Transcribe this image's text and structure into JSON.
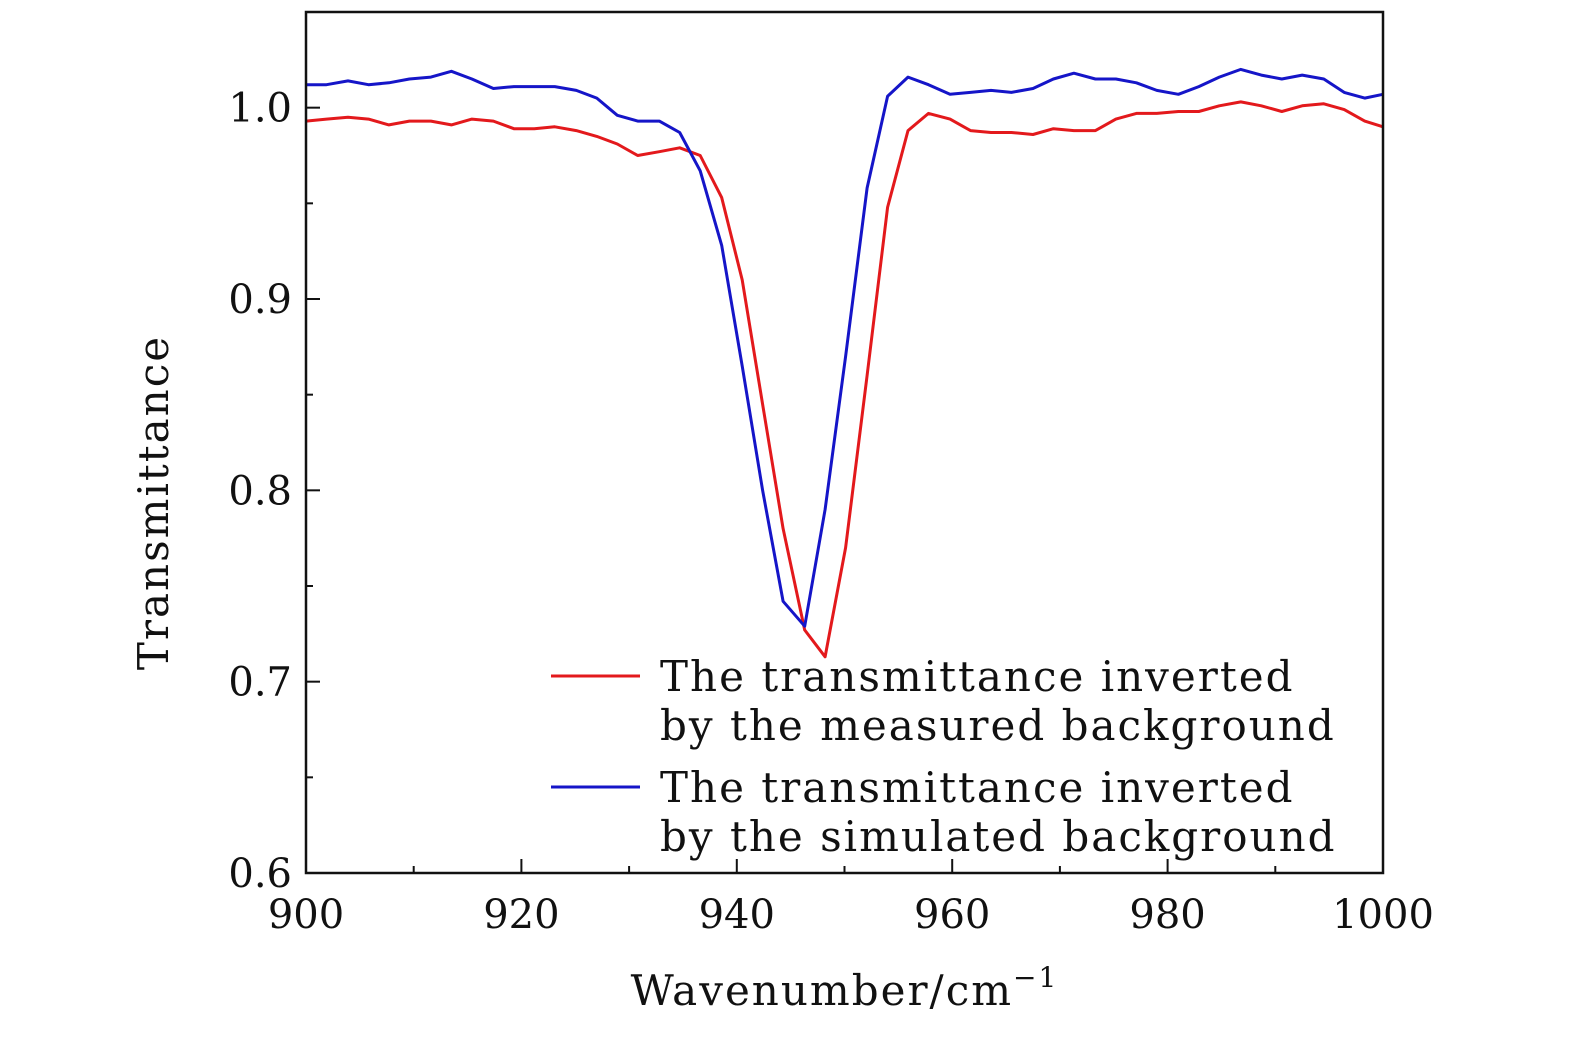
{
  "chart_data": {
    "type": "line",
    "xlabel": "Wavenumber/cm",
    "xlabel_superscript": "−1",
    "ylabel": "Transmittance",
    "xlim": [
      900,
      1000
    ],
    "ylim": [
      0.6,
      1.05
    ],
    "x_ticks": [
      900,
      920,
      940,
      960,
      980,
      1000
    ],
    "x_tick_labels": [
      "900",
      "920",
      "940",
      "960",
      "980",
      "1000"
    ],
    "y_ticks": [
      0.6,
      0.7,
      0.8,
      0.9,
      1.0
    ],
    "y_tick_labels": [
      "0.6",
      "0.7",
      "0.8",
      "0.9",
      "1.0"
    ],
    "y_minor_ticks": [
      0.65,
      0.75,
      0.85,
      0.95
    ],
    "x_minor_ticks": [
      910,
      930,
      950,
      970,
      990
    ],
    "grid": false,
    "legend_position": "bottom-right",
    "series": [
      {
        "name": "The transmittance inverted by the measured background",
        "legend_lines": [
          "The transmittance inverted",
          "by the measured background"
        ],
        "color": "#e3191c",
        "x": [
          900,
          901.9,
          903.9,
          905.8,
          907.7,
          909.6,
          911.6,
          913.5,
          915.4,
          917.4,
          919.3,
          921.2,
          923.1,
          925.1,
          927,
          928.9,
          930.8,
          932.8,
          934.7,
          936.6,
          938.6,
          940.5,
          942.4,
          944.3,
          946.3,
          948.2,
          950.1,
          952.1,
          954,
          955.9,
          957.8,
          959.8,
          961.7,
          963.6,
          965.5,
          967.5,
          969.4,
          971.3,
          973.3,
          975.2,
          977.1,
          979,
          981,
          982.9,
          984.8,
          986.8,
          988.7,
          990.6,
          992.5,
          994.5,
          996.4,
          998.3,
          1000
        ],
        "y": [
          0.993,
          0.994,
          0.995,
          0.994,
          0.991,
          0.993,
          0.993,
          0.991,
          0.994,
          0.993,
          0.989,
          0.989,
          0.99,
          0.988,
          0.985,
          0.981,
          0.975,
          0.977,
          0.979,
          0.975,
          0.953,
          0.91,
          0.845,
          0.78,
          0.727,
          0.713,
          0.77,
          0.86,
          0.948,
          0.988,
          0.997,
          0.994,
          0.988,
          0.987,
          0.987,
          0.986,
          0.989,
          0.988,
          0.988,
          0.994,
          0.997,
          0.997,
          0.998,
          0.998,
          1.001,
          1.003,
          1.001,
          0.998,
          1.001,
          1.002,
          0.999,
          0.993,
          0.99
        ]
      },
      {
        "name": "The transmittance inverted by the simulated background",
        "legend_lines": [
          "The transmittance inverted",
          "by the simulated background"
        ],
        "color": "#1515c8",
        "x": [
          900,
          901.9,
          903.9,
          905.8,
          907.7,
          909.6,
          911.6,
          913.5,
          915.4,
          917.4,
          919.3,
          921.2,
          923.1,
          925.1,
          927,
          928.9,
          930.8,
          932.8,
          934.7,
          936.6,
          938.6,
          940.5,
          942.4,
          944.3,
          946.3,
          948.2,
          950.1,
          952.1,
          954,
          955.9,
          957.8,
          959.8,
          961.7,
          963.6,
          965.5,
          967.5,
          969.4,
          971.3,
          973.3,
          975.2,
          977.1,
          979,
          981,
          982.9,
          984.8,
          986.8,
          988.7,
          990.6,
          992.5,
          994.5,
          996.4,
          998.3,
          1000
        ],
        "y": [
          1.012,
          1.012,
          1.014,
          1.012,
          1.013,
          1.015,
          1.016,
          1.019,
          1.015,
          1.01,
          1.011,
          1.011,
          1.011,
          1.009,
          1.005,
          0.996,
          0.993,
          0.993,
          0.987,
          0.967,
          0.928,
          0.865,
          0.8,
          0.742,
          0.729,
          0.79,
          0.87,
          0.958,
          1.006,
          1.016,
          1.012,
          1.007,
          1.008,
          1.009,
          1.008,
          1.01,
          1.015,
          1.018,
          1.015,
          1.015,
          1.013,
          1.009,
          1.007,
          1.011,
          1.016,
          1.02,
          1.017,
          1.015,
          1.017,
          1.015,
          1.008,
          1.005,
          1.007
        ]
      }
    ]
  }
}
